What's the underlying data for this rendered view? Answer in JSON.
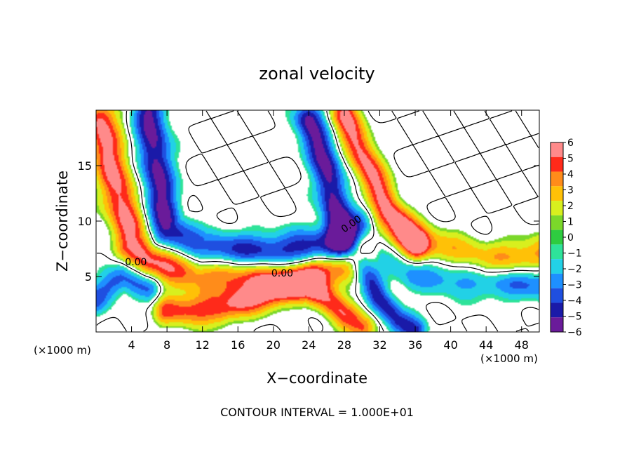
{
  "chart_data": {
    "type": "heatmap",
    "title": "zonal velocity",
    "xlabel": "X−coordinate",
    "ylabel": "Z−coordinate",
    "x_unit_note": "(×1000 m)",
    "z_unit_note": "(×1000 m)",
    "footer": "CONTOUR INTERVAL = 1.000E+01",
    "xlim": [
      0,
      50
    ],
    "zlim": [
      0,
      20
    ],
    "x_ticks": [
      4,
      8,
      12,
      16,
      20,
      24,
      28,
      32,
      36,
      40,
      44,
      48
    ],
    "z_ticks": [
      5,
      10,
      15
    ],
    "colorbar": {
      "ticks": [
        6,
        5,
        4,
        3,
        2,
        1,
        0,
        -1,
        -2,
        -3,
        -4,
        -5,
        -6
      ],
      "range": [
        -6,
        6
      ]
    },
    "contour_labels": [
      {
        "text": "0.00",
        "x": 4.5,
        "z": 6.0
      },
      {
        "text": "0.00",
        "x": 21.0,
        "z": 5.0
      },
      {
        "text": "0.00",
        "x": 29.0,
        "z": 9.5
      }
    ],
    "field_features": [
      {
        "desc": "positive jet",
        "path": [
          [
            0.5,
            19
          ],
          [
            2,
            14
          ],
          [
            4,
            8
          ],
          [
            6,
            6.5
          ],
          [
            12,
            5.5
          ],
          [
            16,
            5
          ],
          [
            24,
            5
          ],
          [
            28,
            6.5
          ],
          [
            32,
            8.5
          ],
          [
            36,
            7.5
          ],
          [
            44,
            6
          ],
          [
            50,
            6.5
          ]
        ],
        "amp": 6,
        "width": 1.3
      },
      {
        "desc": "positive jet upper right",
        "path": [
          [
            28,
            19.5
          ],
          [
            30,
            16
          ],
          [
            33,
            11
          ],
          [
            36,
            8
          ]
        ],
        "amp": 6,
        "width": 1.1
      },
      {
        "desc": "negative jet",
        "path": [
          [
            6,
            19.5
          ],
          [
            7,
            14
          ],
          [
            8,
            9
          ],
          [
            12,
            7
          ],
          [
            20,
            7
          ],
          [
            26,
            7.5
          ],
          [
            30,
            9
          ],
          [
            36,
            6
          ],
          [
            44,
            5
          ],
          [
            50,
            5
          ]
        ],
        "amp": -6,
        "width": 1.3
      },
      {
        "desc": "negative jet rising",
        "path": [
          [
            24,
            19
          ],
          [
            26,
            15
          ],
          [
            27,
            11
          ],
          [
            28,
            8
          ]
        ],
        "amp": -6,
        "width": 1.2
      },
      {
        "desc": "negative lower left",
        "path": [
          [
            0,
            3
          ],
          [
            3,
            5
          ],
          [
            6,
            4
          ]
        ],
        "amp": -4,
        "width": 1.0
      },
      {
        "desc": "positive lower diagonal",
        "path": [
          [
            8,
            2
          ],
          [
            14,
            2
          ],
          [
            20,
            3.5
          ],
          [
            24,
            4.5
          ],
          [
            28,
            1.5
          ],
          [
            30,
            0.3
          ]
        ],
        "amp": 5,
        "width": 1.0
      },
      {
        "desc": "negative lower middle",
        "path": [
          [
            30,
            6
          ],
          [
            32,
            3
          ],
          [
            34,
            1
          ],
          [
            36,
            0
          ]
        ],
        "amp": -5,
        "width": 0.9
      },
      {
        "desc": "neutral band",
        "path": [
          [
            3,
            19
          ],
          [
            4,
            12
          ],
          [
            6,
            7
          ],
          [
            14,
            6
          ],
          [
            24,
            6
          ],
          [
            32,
            6
          ],
          [
            38,
            5.5
          ],
          [
            50,
            5.5
          ]
        ],
        "amp": 0.5,
        "width": 0.8
      }
    ]
  }
}
